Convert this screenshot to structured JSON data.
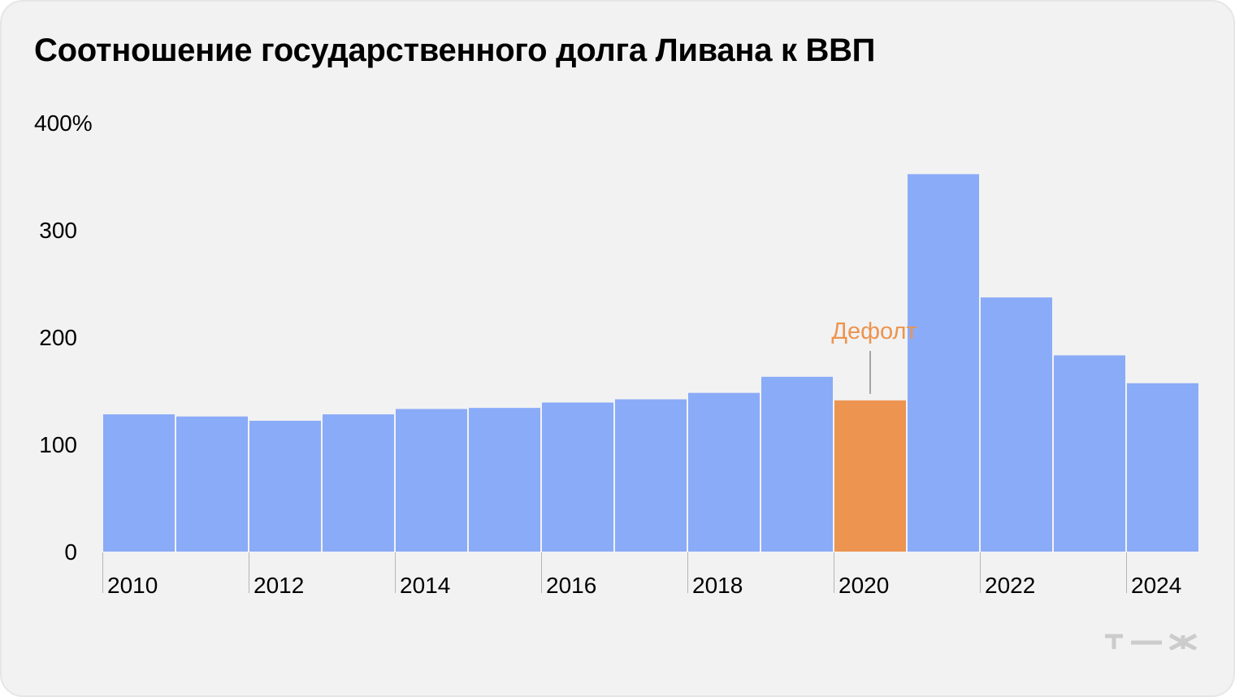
{
  "chart_data": {
    "type": "bar",
    "title": "Соотношение государственного долга Ливана к ВВП",
    "x": [
      2010,
      2011,
      2012,
      2013,
      2014,
      2015,
      2016,
      2017,
      2018,
      2019,
      2020,
      2021,
      2022,
      2023,
      2024
    ],
    "values": [
      128,
      126,
      122,
      128,
      133,
      134,
      139,
      142,
      148,
      163,
      141,
      352,
      237,
      183,
      157
    ],
    "x_tick_labels": [
      "2010",
      "2012",
      "2014",
      "2016",
      "2018",
      "2020",
      "2022",
      "2024"
    ],
    "y_tick_labels": [
      "0",
      "100",
      "200",
      "300",
      "400%"
    ],
    "y_ticks": [
      0,
      100,
      200,
      300,
      400
    ],
    "ylim": [
      0,
      400
    ],
    "grid": false,
    "colors": {
      "default": "#8aabf8",
      "highlight": "#ec9450"
    },
    "highlight_year": 2020,
    "annotation": {
      "text": "Дефолт",
      "x": 2020,
      "color": "#ec9450"
    }
  },
  "brand": {
    "logo_text": "т—ж",
    "logo_color": "#cccccc"
  }
}
